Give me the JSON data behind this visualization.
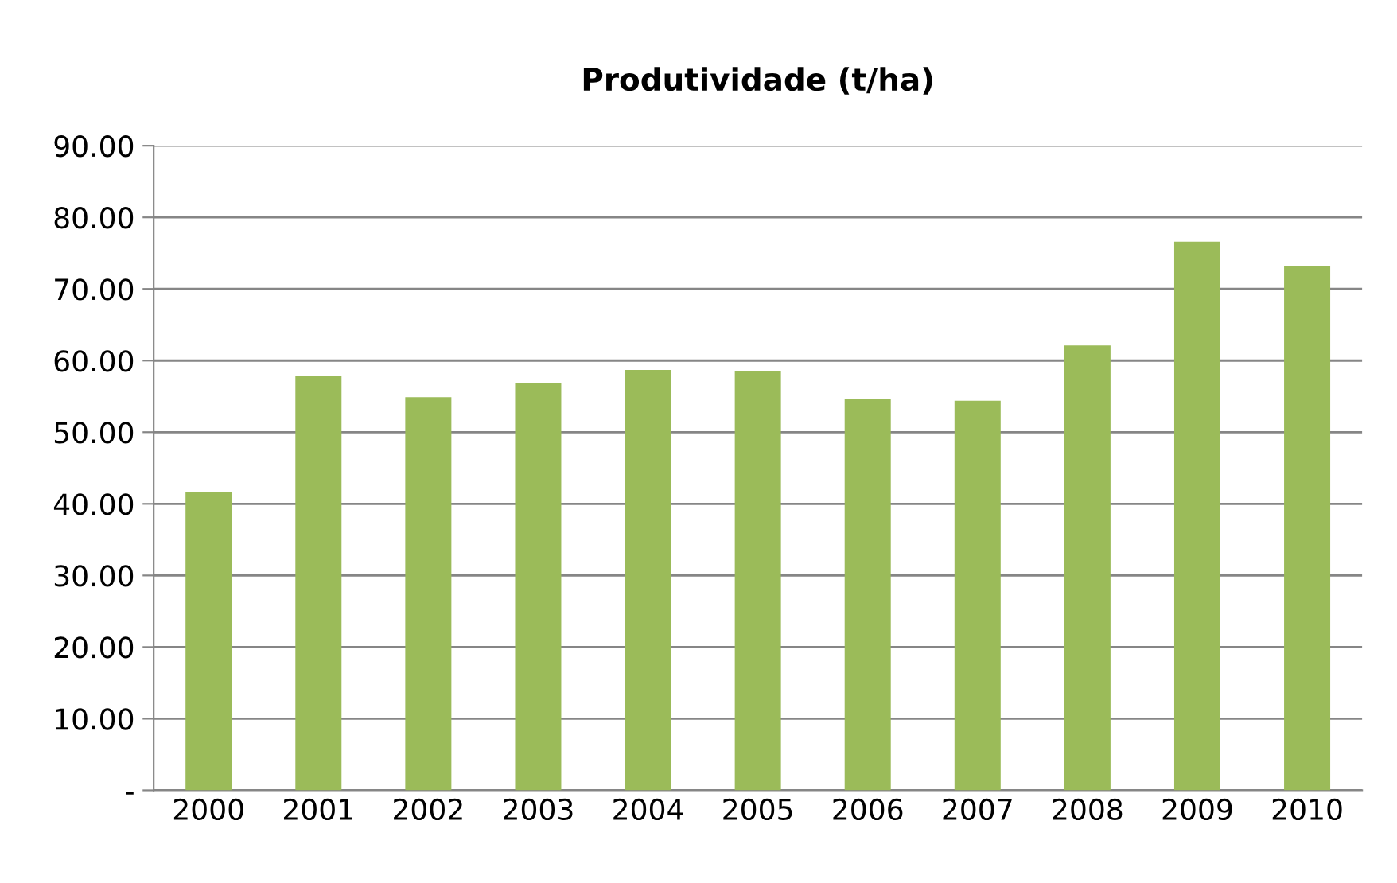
{
  "chart_data": {
    "type": "bar",
    "title": "Produtividade (t/ha)",
    "categories": [
      "2000",
      "2001",
      "2002",
      "2003",
      "2004",
      "2005",
      "2006",
      "2007",
      "2008",
      "2009",
      "2010"
    ],
    "values": [
      41.7,
      57.8,
      54.9,
      56.9,
      58.7,
      58.5,
      54.6,
      54.4,
      62.1,
      76.6,
      73.2
    ],
    "color": "#9bbb59",
    "ylim": [
      0,
      90
    ],
    "yticks": [
      {
        "value": 0,
        "label": "-"
      },
      {
        "value": 10,
        "label": "10.00"
      },
      {
        "value": 20,
        "label": "20.00"
      },
      {
        "value": 30,
        "label": "30.00"
      },
      {
        "value": 40,
        "label": "40.00"
      },
      {
        "value": 50,
        "label": "50.00"
      },
      {
        "value": 60,
        "label": "60.00"
      },
      {
        "value": 70,
        "label": "70.00"
      },
      {
        "value": 80,
        "label": "80.00"
      },
      {
        "value": 90,
        "label": "90.00"
      }
    ],
    "grid": "y"
  }
}
